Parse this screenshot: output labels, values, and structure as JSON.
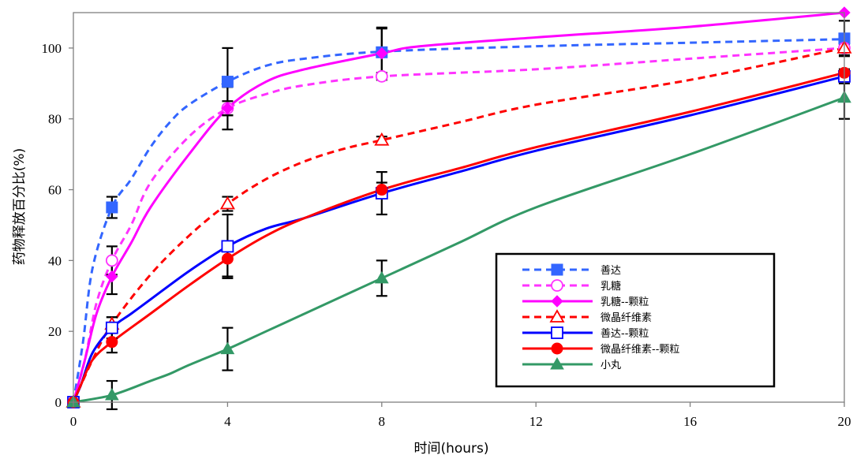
{
  "chart_data": {
    "type": "line",
    "title": "",
    "xlabel": "时间(hours)",
    "ylabel": "药物释放百分比(%)",
    "xlim": [
      0,
      20
    ],
    "ylim": [
      0,
      110
    ],
    "xticks": [
      0,
      4,
      8,
      12,
      16,
      20
    ],
    "yticks": [
      0,
      20,
      40,
      60,
      80,
      100
    ],
    "grid": false,
    "legend_position": "bottom-right",
    "series": [
      {
        "name": "善达",
        "color": "#3366ff",
        "line_style": "dashed",
        "marker": "filled-square",
        "curve": [
          [
            0,
            0
          ],
          [
            0.25,
            17
          ],
          [
            0.5,
            38
          ],
          [
            1,
            55
          ],
          [
            1.5,
            63
          ],
          [
            2,
            72
          ],
          [
            2.5,
            79
          ],
          [
            3,
            84
          ],
          [
            4,
            90.5
          ],
          [
            5,
            95
          ],
          [
            6,
            97
          ],
          [
            8,
            99
          ],
          [
            12,
            100.5
          ],
          [
            16,
            101.5
          ],
          [
            20,
            102.5
          ]
        ],
        "points": [
          {
            "x": 0,
            "y": 0,
            "err": 0
          },
          {
            "x": 1,
            "y": 55,
            "err": 3
          },
          {
            "x": 4,
            "y": 90.5,
            "err": 9.5
          },
          {
            "x": 8,
            "y": 98.8,
            "err": 7
          },
          {
            "x": 20,
            "y": 102.7,
            "err": 5
          }
        ]
      },
      {
        "name": "乳糖",
        "color": "#ff33ff",
        "line_style": "dashed",
        "marker": "open-circle",
        "curve": [
          [
            0,
            0
          ],
          [
            0.3,
            12
          ],
          [
            0.6,
            28
          ],
          [
            1,
            40
          ],
          [
            1.5,
            50
          ],
          [
            2,
            62
          ],
          [
            3,
            75
          ],
          [
            4,
            83
          ],
          [
            5,
            87
          ],
          [
            6,
            89.5
          ],
          [
            8,
            92
          ],
          [
            12,
            94
          ],
          [
            16,
            97
          ],
          [
            20,
            100
          ]
        ],
        "points": [
          {
            "x": 0,
            "y": 0,
            "err": 0
          },
          {
            "x": 1,
            "y": 40,
            "err": 4
          },
          {
            "x": 4,
            "y": 83,
            "err": 2
          },
          {
            "x": 8,
            "y": 92,
            "err": 1
          },
          {
            "x": 20,
            "y": 100,
            "err": 1
          }
        ]
      },
      {
        "name": "乳糖--颗粒",
        "color": "#ff00ff",
        "line_style": "solid",
        "marker": "filled-diamond",
        "curve": [
          [
            0,
            0
          ],
          [
            0.3,
            12
          ],
          [
            0.6,
            25
          ],
          [
            1,
            35.5
          ],
          [
            1.5,
            45
          ],
          [
            2,
            55
          ],
          [
            3,
            70
          ],
          [
            4,
            83
          ],
          [
            5,
            90.5
          ],
          [
            6,
            94
          ],
          [
            8,
            98.5
          ],
          [
            9,
            100.5
          ],
          [
            12,
            103
          ],
          [
            16,
            106
          ],
          [
            20,
            110
          ]
        ],
        "points": [
          {
            "x": 0,
            "y": 0,
            "err": 0
          },
          {
            "x": 1,
            "y": 35.5,
            "err": 5
          },
          {
            "x": 4,
            "y": 83,
            "err": 6
          },
          {
            "x": 8,
            "y": 98.5,
            "err": 7
          },
          {
            "x": 20,
            "y": 110,
            "err": 0
          }
        ]
      },
      {
        "name": "微晶纤维素",
        "color": "#ff0000",
        "line_style": "dashed",
        "marker": "open-triangle",
        "curve": [
          [
            0,
            0
          ],
          [
            0.5,
            12
          ],
          [
            1,
            22
          ],
          [
            2,
            36
          ],
          [
            3,
            47
          ],
          [
            4,
            56
          ],
          [
            5,
            63
          ],
          [
            6,
            68
          ],
          [
            7,
            71.5
          ],
          [
            8,
            74
          ],
          [
            10,
            79
          ],
          [
            12,
            84
          ],
          [
            16,
            91
          ],
          [
            20,
            100
          ]
        ],
        "points": [
          {
            "x": 0,
            "y": 0,
            "err": 0
          },
          {
            "x": 1,
            "y": 22,
            "err": 2
          },
          {
            "x": 4,
            "y": 56,
            "err": 2
          },
          {
            "x": 8,
            "y": 74,
            "err": 1
          },
          {
            "x": 20,
            "y": 100,
            "err": 2
          }
        ]
      },
      {
        "name": "善达--颗粒",
        "color": "#0000ff",
        "line_style": "solid",
        "marker": "open-square",
        "curve": [
          [
            0,
            0
          ],
          [
            0.2,
            5
          ],
          [
            0.5,
            14
          ],
          [
            1,
            21
          ],
          [
            1.5,
            25
          ],
          [
            2,
            29
          ],
          [
            3,
            37
          ],
          [
            4,
            44
          ],
          [
            5,
            49
          ],
          [
            6,
            52
          ],
          [
            8,
            59
          ],
          [
            10,
            65
          ],
          [
            12,
            71
          ],
          [
            16,
            81
          ],
          [
            20,
            92
          ]
        ],
        "points": [
          {
            "x": 0,
            "y": 0,
            "err": 0
          },
          {
            "x": 1,
            "y": 21,
            "err": 3
          },
          {
            "x": 4,
            "y": 44,
            "err": 9
          },
          {
            "x": 8,
            "y": 59,
            "err": 6
          },
          {
            "x": 20,
            "y": 92,
            "err": 2
          }
        ]
      },
      {
        "name": "微晶纤维素--颗粒",
        "color": "#ff0000",
        "line_style": "solid",
        "marker": "filled-circle",
        "curve": [
          [
            0,
            0
          ],
          [
            0.2,
            5
          ],
          [
            0.5,
            12
          ],
          [
            1,
            17
          ],
          [
            2,
            25
          ],
          [
            3,
            33
          ],
          [
            4,
            40.5
          ],
          [
            5,
            47
          ],
          [
            6,
            52
          ],
          [
            8,
            60
          ],
          [
            10,
            66
          ],
          [
            12,
            72
          ],
          [
            16,
            82
          ],
          [
            20,
            93
          ]
        ],
        "points": [
          {
            "x": 0,
            "y": 0,
            "err": 0
          },
          {
            "x": 1,
            "y": 17,
            "err": 3
          },
          {
            "x": 4,
            "y": 40.5,
            "err": 5
          },
          {
            "x": 8,
            "y": 60,
            "err": 2
          },
          {
            "x": 20,
            "y": 93,
            "err": 1
          }
        ]
      },
      {
        "name": "小丸",
        "color": "#339966",
        "line_style": "solid",
        "marker": "filled-triangle",
        "curve": [
          [
            0,
            0
          ],
          [
            1,
            2
          ],
          [
            2,
            6
          ],
          [
            2.5,
            8
          ],
          [
            3,
            10.5
          ],
          [
            4,
            15
          ],
          [
            5,
            20
          ],
          [
            6,
            25
          ],
          [
            7,
            30
          ],
          [
            8,
            35
          ],
          [
            10,
            45
          ],
          [
            12,
            55
          ],
          [
            16,
            70
          ],
          [
            20,
            86
          ]
        ],
        "points": [
          {
            "x": 0,
            "y": 0,
            "err": 0
          },
          {
            "x": 1,
            "y": 2,
            "err": 4
          },
          {
            "x": 4,
            "y": 15,
            "err": 6
          },
          {
            "x": 8,
            "y": 35,
            "err": 5
          },
          {
            "x": 20,
            "y": 86,
            "err": 6
          }
        ]
      }
    ]
  }
}
